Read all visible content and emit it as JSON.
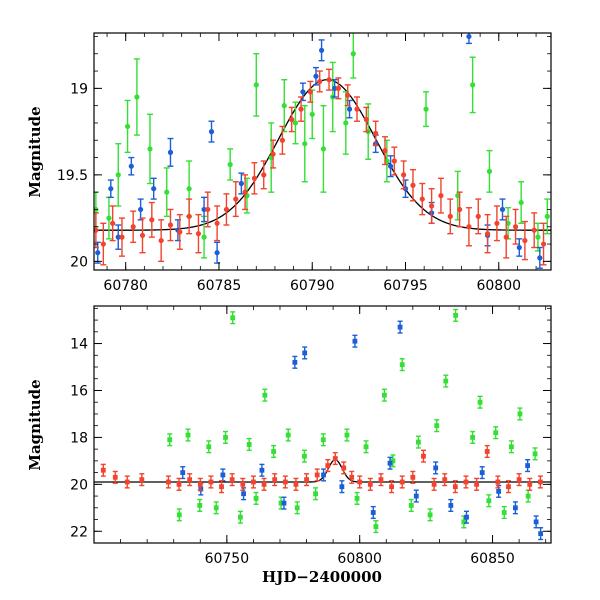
{
  "colors": {
    "green": "#33e033",
    "blue": "#1a5fd6",
    "red": "#f2432e",
    "model": "#000000"
  },
  "chart_data": [
    {
      "type": "scatter",
      "panel": "top",
      "title": "",
      "xlabel": "",
      "ylabel": "Magnitude",
      "xlim": [
        60778.3,
        60802.8
      ],
      "ylim": [
        20.05,
        18.68
      ],
      "y_inverted": true,
      "grid": false,
      "legend": "none",
      "x_ticks": [
        "60780",
        "60785",
        "60790",
        "60795",
        "60800"
      ],
      "x_tick_values": [
        60780,
        60785,
        60790,
        60795,
        60800
      ],
      "y_ticks": [
        "19",
        "19.5",
        "20"
      ],
      "y_tick_values": [
        19.0,
        19.5,
        20.0
      ],
      "model": {
        "peak_x": 60790.8,
        "peak_mag": 18.95,
        "baseline_mag": 19.82,
        "tau_days": 2.6
      },
      "series": [
        {
          "color": "green",
          "points": [
            [
              60778.4,
              19.7,
              0.1
            ],
            [
              60779.1,
              19.75,
              0.12
            ],
            [
              60779.6,
              19.5,
              0.18
            ],
            [
              60780.1,
              19.22,
              0.15
            ],
            [
              60780.6,
              19.05,
              0.22
            ],
            [
              60781.3,
              19.35,
              0.2
            ],
            [
              60782.2,
              19.6,
              0.14
            ],
            [
              60783.4,
              19.58,
              0.16
            ],
            [
              60784.2,
              19.86,
              0.12
            ],
            [
              60785.6,
              19.44,
              0.09
            ],
            [
              60786.5,
              19.62,
              0.1
            ],
            [
              60787.0,
              18.98,
              0.18
            ],
            [
              60787.8,
              19.4,
              0.2
            ],
            [
              60788.5,
              19.1,
              0.15
            ],
            [
              60789.1,
              19.2,
              0.12
            ],
            [
              60789.6,
              19.32,
              0.22
            ],
            [
              60790.0,
              19.15,
              0.14
            ],
            [
              60790.6,
              19.35,
              0.25
            ],
            [
              60791.1,
              19.05,
              0.2
            ],
            [
              60791.8,
              19.2,
              0.18
            ],
            [
              60792.2,
              18.8,
              0.14
            ],
            [
              60793.0,
              19.25,
              0.16
            ],
            [
              60794.0,
              19.42,
              0.12
            ],
            [
              60796.1,
              19.12,
              0.1
            ],
            [
              60797.8,
              19.62,
              0.14
            ],
            [
              60798.6,
              18.98,
              0.16
            ],
            [
              60799.5,
              19.48,
              0.12
            ],
            [
              60800.5,
              19.78,
              0.09
            ],
            [
              60801.2,
              19.66,
              0.12
            ],
            [
              60802.1,
              19.86,
              0.08
            ],
            [
              60802.6,
              19.74,
              0.1
            ]
          ]
        },
        {
          "color": "blue",
          "points": [
            [
              60778.5,
              19.95,
              0.06
            ],
            [
              60779.2,
              19.58,
              0.05
            ],
            [
              60779.6,
              19.86,
              0.07
            ],
            [
              60780.3,
              19.45,
              0.05
            ],
            [
              60780.8,
              19.7,
              0.06
            ],
            [
              60781.5,
              19.58,
              0.06
            ],
            [
              60782.4,
              19.37,
              0.08
            ],
            [
              60782.8,
              19.82,
              0.06
            ],
            [
              60784.2,
              19.7,
              0.07
            ],
            [
              60784.6,
              19.25,
              0.06
            ],
            [
              60784.9,
              19.95,
              0.06
            ],
            [
              60786.2,
              19.55,
              0.06
            ],
            [
              60789.5,
              19.02,
              0.05
            ],
            [
              60790.2,
              18.93,
              0.05
            ],
            [
              60790.5,
              18.78,
              0.06
            ],
            [
              60791.2,
              19.0,
              0.05
            ],
            [
              60792.0,
              19.12,
              0.05
            ],
            [
              60793.4,
              19.32,
              0.05
            ],
            [
              60794.2,
              19.45,
              0.06
            ],
            [
              60795.0,
              19.58,
              0.05
            ],
            [
              60796.4,
              19.72,
              0.06
            ],
            [
              60798.4,
              18.7,
              0.04
            ],
            [
              60799.4,
              19.85,
              0.06
            ],
            [
              60800.2,
              19.7,
              0.06
            ],
            [
              60801.1,
              19.92,
              0.05
            ],
            [
              60802.2,
              19.98,
              0.06
            ]
          ]
        },
        {
          "color": "red",
          "points": [
            [
              60778.4,
              19.82,
              0.1
            ],
            [
              60778.8,
              19.9,
              0.12
            ],
            [
              60779.3,
              19.78,
              0.1
            ],
            [
              60779.8,
              19.86,
              0.11
            ],
            [
              60780.4,
              19.8,
              0.09
            ],
            [
              60780.9,
              19.85,
              0.1
            ],
            [
              60781.4,
              19.76,
              0.1
            ],
            [
              60781.9,
              19.88,
              0.12
            ],
            [
              60782.4,
              19.79,
              0.09
            ],
            [
              60782.9,
              19.83,
              0.1
            ],
            [
              60783.4,
              19.74,
              0.1
            ],
            [
              60783.9,
              19.84,
              0.11
            ],
            [
              60784.4,
              19.7,
              0.1
            ],
            [
              60784.9,
              19.78,
              0.1
            ],
            [
              60785.4,
              19.7,
              0.09
            ],
            [
              60785.9,
              19.64,
              0.1
            ],
            [
              60786.4,
              19.6,
              0.1
            ],
            [
              60786.9,
              19.52,
              0.09
            ],
            [
              60787.4,
              19.5,
              0.08
            ],
            [
              60787.9,
              19.38,
              0.08
            ],
            [
              60788.4,
              19.3,
              0.08
            ],
            [
              60788.9,
              19.18,
              0.07
            ],
            [
              60789.4,
              19.12,
              0.07
            ],
            [
              60789.9,
              19.02,
              0.06
            ],
            [
              60790.4,
              18.96,
              0.06
            ],
            [
              60790.9,
              18.95,
              0.06
            ],
            [
              60791.4,
              19.0,
              0.06
            ],
            [
              60791.9,
              19.04,
              0.06
            ],
            [
              60792.4,
              19.12,
              0.07
            ],
            [
              60792.9,
              19.18,
              0.07
            ],
            [
              60793.4,
              19.26,
              0.07
            ],
            [
              60793.9,
              19.36,
              0.08
            ],
            [
              60794.4,
              19.42,
              0.08
            ],
            [
              60794.9,
              19.5,
              0.08
            ],
            [
              60795.4,
              19.56,
              0.09
            ],
            [
              60795.9,
              19.64,
              0.09
            ],
            [
              60796.4,
              19.68,
              0.1
            ],
            [
              60796.9,
              19.62,
              0.1
            ],
            [
              60797.4,
              19.74,
              0.1
            ],
            [
              60797.9,
              19.7,
              0.1
            ],
            [
              60798.4,
              19.8,
              0.11
            ],
            [
              60798.9,
              19.74,
              0.1
            ],
            [
              60799.4,
              19.84,
              0.11
            ],
            [
              60799.9,
              19.78,
              0.1
            ],
            [
              60800.4,
              19.86,
              0.12
            ],
            [
              60800.9,
              19.8,
              0.1
            ],
            [
              60801.4,
              19.88,
              0.11
            ],
            [
              60801.9,
              19.82,
              0.1
            ],
            [
              60802.4,
              19.9,
              0.12
            ]
          ]
        }
      ]
    },
    {
      "type": "scatter",
      "panel": "bottom",
      "title": "",
      "xlabel": "HJD−2400000",
      "ylabel": "Magnitude",
      "xlim": [
        60700,
        60872
      ],
      "ylim": [
        22.5,
        12.4
      ],
      "y_inverted": true,
      "grid": false,
      "legend": "none",
      "x_ticks": [
        "60750",
        "60800",
        "60850"
      ],
      "x_tick_values": [
        60750,
        60800,
        60850
      ],
      "y_ticks": [
        "14",
        "16",
        "18",
        "20",
        "22"
      ],
      "y_tick_values": [
        14,
        16,
        18,
        20,
        22
      ],
      "model": {
        "peak_x": 60790.8,
        "peak_mag": 18.95,
        "baseline_mag": 19.9,
        "tau_days": 2.6
      },
      "series": [
        {
          "color": "green",
          "points": [
            [
              60728.5,
              18.1
            ],
            [
              60732.1,
              21.3
            ],
            [
              60735.4,
              17.9
            ],
            [
              60739.8,
              20.9
            ],
            [
              60743.2,
              18.4
            ],
            [
              60746.0,
              21.0
            ],
            [
              60749.5,
              18.0
            ],
            [
              60752.2,
              12.9
            ],
            [
              60755.1,
              21.4
            ],
            [
              60758.4,
              18.3
            ],
            [
              60761.0,
              20.6
            ],
            [
              60764.3,
              16.2
            ],
            [
              60767.6,
              18.6
            ],
            [
              60770.4,
              20.8
            ],
            [
              60773.1,
              17.9
            ],
            [
              60776.5,
              21.0
            ],
            [
              60779.2,
              18.8
            ],
            [
              60783.4,
              20.4
            ],
            [
              60786.3,
              18.1
            ],
            [
              60795.2,
              17.9
            ],
            [
              60799.0,
              20.6
            ],
            [
              60802.4,
              18.4
            ],
            [
              60806.1,
              21.8
            ],
            [
              60809.3,
              16.2
            ],
            [
              60812.5,
              19.0
            ],
            [
              60816.0,
              14.9
            ],
            [
              60819.4,
              20.9
            ],
            [
              60822.1,
              18.2
            ],
            [
              60826.5,
              21.3
            ],
            [
              60829.0,
              17.5
            ],
            [
              60832.4,
              15.6
            ],
            [
              60836.1,
              12.8
            ],
            [
              60839.2,
              21.6
            ],
            [
              60842.5,
              18.0
            ],
            [
              60845.3,
              16.5
            ],
            [
              60848.6,
              20.7
            ],
            [
              60851.2,
              17.8
            ],
            [
              60854.4,
              21.2
            ],
            [
              60857.1,
              18.4
            ],
            [
              60860.3,
              17.0
            ],
            [
              60863.4,
              20.5
            ],
            [
              60866.0,
              18.7
            ]
          ]
        },
        {
          "color": "blue",
          "points": [
            [
              60733.4,
              19.5
            ],
            [
              60740.2,
              20.2
            ],
            [
              60748.5,
              19.6
            ],
            [
              60756.3,
              20.4
            ],
            [
              60763.2,
              19.4
            ],
            [
              60771.5,
              20.8
            ],
            [
              60775.6,
              14.8
            ],
            [
              60779.3,
              14.4
            ],
            [
              60786.4,
              19.6
            ],
            [
              60793.3,
              20.1
            ],
            [
              60798.2,
              13.9
            ],
            [
              60805.1,
              21.2
            ],
            [
              60811.4,
              19.1
            ],
            [
              60815.2,
              13.3
            ],
            [
              60821.3,
              20.5
            ],
            [
              60828.6,
              19.3
            ],
            [
              60834.3,
              20.9
            ],
            [
              60840.2,
              21.4
            ],
            [
              60846.1,
              19.5
            ],
            [
              60852.3,
              20.3
            ],
            [
              60858.6,
              21.0
            ],
            [
              60863.2,
              19.2
            ],
            [
              60866.4,
              21.6
            ],
            [
              60868.1,
              22.1
            ]
          ]
        },
        {
          "color": "red",
          "points": [
            [
              60703.5,
              19.4
            ],
            [
              60708.0,
              19.7
            ],
            [
              60712.5,
              19.9
            ],
            [
              60718.0,
              19.8
            ],
            [
              60728.0,
              19.9
            ],
            [
              60732.0,
              20.0
            ],
            [
              60736.0,
              19.8
            ],
            [
              60740.0,
              20.0
            ],
            [
              60744.0,
              19.9
            ],
            [
              60748.0,
              20.1
            ],
            [
              60752.0,
              19.8
            ],
            [
              60756.0,
              20.0
            ],
            [
              60760.0,
              19.9
            ],
            [
              60764.0,
              20.0
            ],
            [
              60768.0,
              19.8
            ],
            [
              60772.0,
              19.9
            ],
            [
              60776.0,
              20.0
            ],
            [
              60780.0,
              19.8
            ],
            [
              60784.0,
              19.6
            ],
            [
              60788.0,
              19.2
            ],
            [
              60790.8,
              18.9
            ],
            [
              60794.0,
              19.3
            ],
            [
              60797.0,
              19.7
            ],
            [
              60800.0,
              19.9
            ],
            [
              60804.0,
              20.0
            ],
            [
              60808.0,
              19.8
            ],
            [
              60812.0,
              20.1
            ],
            [
              60816.0,
              19.9
            ],
            [
              60820.0,
              19.7
            ],
            [
              60824.0,
              18.8
            ],
            [
              60828.0,
              20.0
            ],
            [
              60832.0,
              19.8
            ],
            [
              60836.0,
              20.1
            ],
            [
              60840.0,
              19.9
            ],
            [
              60844.0,
              20.0
            ],
            [
              60848.0,
              18.6
            ],
            [
              60852.0,
              19.9
            ],
            [
              60856.0,
              20.1
            ],
            [
              60860.0,
              19.8
            ],
            [
              60864.0,
              20.0
            ],
            [
              60868.0,
              19.9
            ]
          ]
        }
      ]
    }
  ]
}
